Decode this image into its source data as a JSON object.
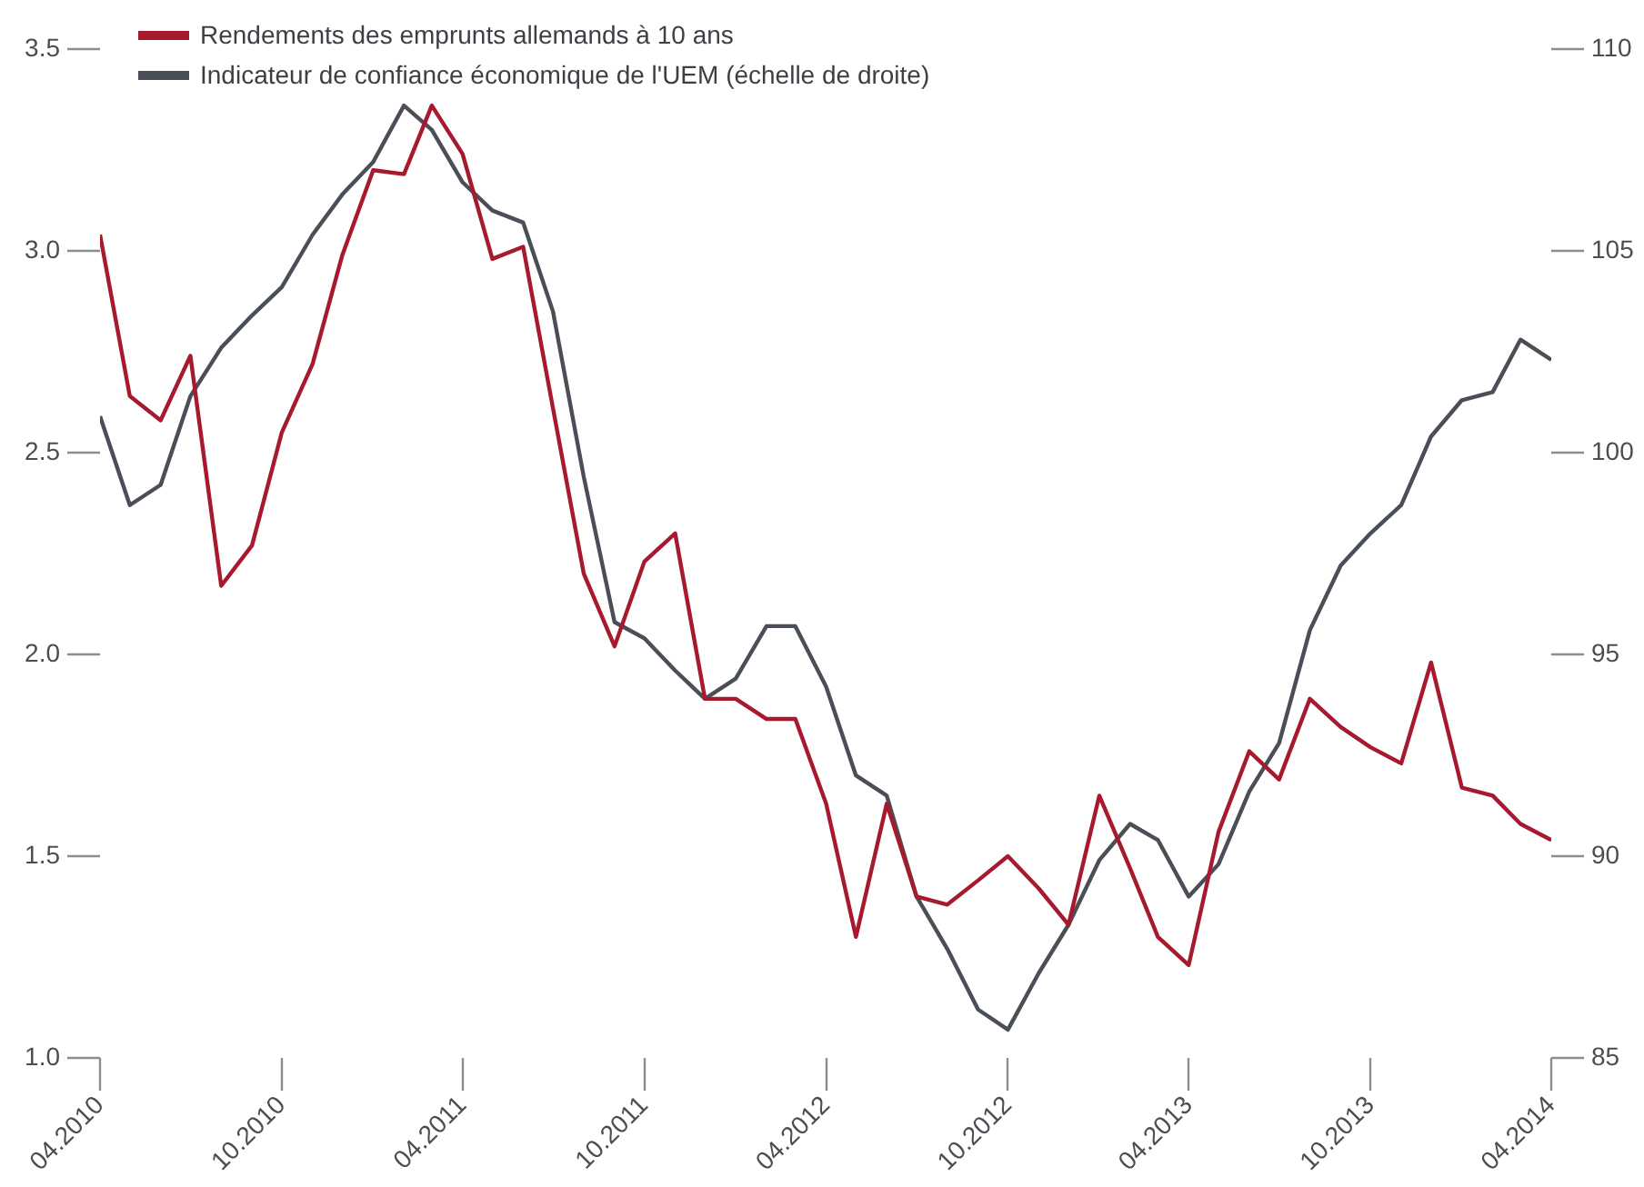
{
  "chart_data": {
    "type": "line",
    "x": [
      "2010-04",
      "2010-05",
      "2010-06",
      "2010-07",
      "2010-08",
      "2010-09",
      "2010-10",
      "2010-11",
      "2010-12",
      "2011-01",
      "2011-02",
      "2011-03",
      "2011-04",
      "2011-05",
      "2011-06",
      "2011-07",
      "2011-08",
      "2011-09",
      "2011-10",
      "2011-11",
      "2011-12",
      "2012-01",
      "2012-02",
      "2012-03",
      "2012-04",
      "2012-05",
      "2012-06",
      "2012-07",
      "2012-08",
      "2012-09",
      "2012-10",
      "2012-11",
      "2012-12",
      "2013-01",
      "2013-02",
      "2013-03",
      "2013-04",
      "2013-05",
      "2013-06",
      "2013-07",
      "2013-08",
      "2013-09",
      "2013-10",
      "2013-11",
      "2013-12",
      "2014-01",
      "2014-02",
      "2014-03",
      "2014-04"
    ],
    "series": [
      {
        "name": "Rendements des emprunts allemands à 10 ans",
        "color": "#a6192e",
        "values": [
          3.04,
          2.64,
          2.58,
          2.74,
          2.17,
          2.27,
          2.55,
          2.72,
          2.99,
          3.2,
          3.19,
          3.36,
          3.24,
          2.98,
          3.01,
          2.61,
          2.2,
          2.02,
          2.23,
          2.3,
          1.89,
          1.89,
          1.84,
          1.84,
          1.63,
          1.3,
          1.63,
          1.4,
          1.38,
          1.44,
          1.5,
          1.42,
          1.33,
          1.65,
          1.47,
          1.3,
          1.23,
          1.56,
          1.76,
          1.69,
          1.89,
          1.82,
          1.77,
          1.73,
          1.98,
          1.67,
          1.65,
          1.58,
          1.54
        ]
      },
      {
        "name": "Indicateur de confiance économique de l'UEM (échelle de droite)",
        "color": "#4a4f57",
        "axis": "y2",
        "values": [
          100.9,
          98.7,
          99.2,
          101.4,
          102.6,
          103.4,
          104.1,
          105.4,
          106.4,
          107.2,
          108.6,
          108.0,
          106.7,
          106.0,
          105.7,
          103.5,
          99.4,
          95.8,
          95.4,
          94.6,
          93.9,
          94.4,
          95.7,
          95.7,
          94.2,
          92.0,
          91.5,
          89.0,
          87.7,
          86.2,
          85.7,
          87.1,
          88.3,
          89.9,
          90.8,
          90.4,
          89.0,
          89.8,
          91.6,
          92.8,
          95.6,
          97.2,
          98.0,
          98.7,
          100.4,
          101.3,
          101.5,
          102.8,
          102.3
        ]
      }
    ],
    "xlim": [
      "2010-04",
      "2014-04"
    ],
    "xticks": [
      {
        "value": "2010-04",
        "label": "04.2010"
      },
      {
        "value": "2010-10",
        "label": "10.2010"
      },
      {
        "value": "2011-04",
        "label": "04.2011"
      },
      {
        "value": "2011-10",
        "label": "10.2011"
      },
      {
        "value": "2012-04",
        "label": "04.2012"
      },
      {
        "value": "2012-10",
        "label": "10.2012"
      },
      {
        "value": "2013-04",
        "label": "04.2013"
      },
      {
        "value": "2013-10",
        "label": "10.2013"
      },
      {
        "value": "2014-04",
        "label": "04.2014"
      }
    ],
    "ylim": [
      1.0,
      3.5
    ],
    "yticks": [
      {
        "value": 1,
        "label": "1.0"
      },
      1.5,
      {
        "value": 2,
        "label": "2.0"
      },
      2.5,
      {
        "value": 3,
        "label": "3.0"
      },
      3.5
    ],
    "y2lim": [
      85,
      110
    ],
    "y2ticks": [
      85,
      90,
      95,
      100,
      105,
      110
    ],
    "grid": false,
    "legend": "top left",
    "marker": "none",
    "line_style": "solid"
  }
}
